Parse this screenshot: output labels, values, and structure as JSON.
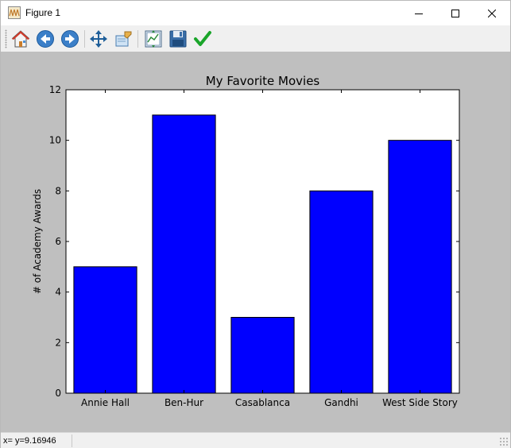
{
  "window": {
    "title": "Figure 1",
    "controls": {
      "minimize": "minimize",
      "maximize": "maximize",
      "close": "close"
    }
  },
  "toolbar": {
    "tools": [
      {
        "name": "home",
        "icon": "home-icon"
      },
      {
        "name": "back",
        "icon": "back-arrow-icon"
      },
      {
        "name": "forward",
        "icon": "forward-arrow-icon"
      },
      {
        "name": "pan",
        "icon": "pan-move-icon"
      },
      {
        "name": "zoom",
        "icon": "zoom-rect-icon"
      },
      {
        "name": "subplots",
        "icon": "subplots-config-icon"
      },
      {
        "name": "save",
        "icon": "save-floppy-icon"
      },
      {
        "name": "edit",
        "icon": "checkmark-icon"
      }
    ]
  },
  "status": {
    "coords": "x= y=9.16946"
  },
  "colors": {
    "bar": "#0000ff",
    "canvas": "#bfbfbf",
    "plot_bg": "#ffffff"
  },
  "chart_data": {
    "type": "bar",
    "title": "My Favorite Movies",
    "xlabel": "",
    "ylabel": "# of Academy Awards",
    "categories": [
      "Annie Hall",
      "Ben-Hur",
      "Casablanca",
      "Gandhi",
      "West Side Story"
    ],
    "values": [
      5,
      11,
      3,
      8,
      10
    ],
    "ylim": [
      0,
      12
    ],
    "yticks": [
      0,
      2,
      4,
      6,
      8,
      10,
      12
    ],
    "grid": false,
    "legend": "none"
  }
}
